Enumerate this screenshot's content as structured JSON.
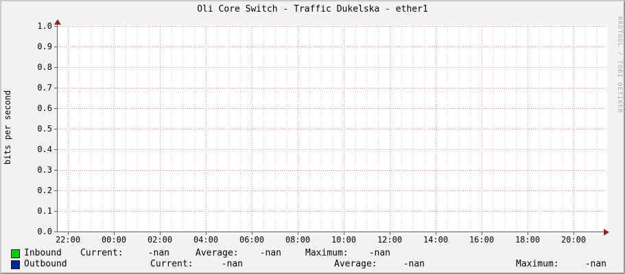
{
  "title": "Oli Core Switch - Traffic Dukelska - ether1",
  "watermark": "RRDTOOL / TOBI OETIKER",
  "chart_data": {
    "type": "line",
    "title": "Oli Core Switch - Traffic Dukelska - ether1",
    "xlabel": "",
    "ylabel": "bits per second",
    "ylim": [
      0.0,
      1.0
    ],
    "y_ticks": [
      "1.0",
      "0.9",
      "0.8",
      "0.7",
      "0.6",
      "0.5",
      "0.4",
      "0.3",
      "0.2",
      "0.1",
      "0.0"
    ],
    "x_ticks": [
      "22:00",
      "00:00",
      "02:00",
      "04:00",
      "06:00",
      "08:00",
      "10:00",
      "12:00",
      "14:00",
      "16:00",
      "18:00",
      "20:00"
    ],
    "grid": true,
    "legend_position": "bottom",
    "series": [
      {
        "name": "Inbound",
        "color": "#00CC00",
        "values": []
      },
      {
        "name": "Outbound",
        "color": "#00269C",
        "values": []
      }
    ]
  },
  "legend": {
    "inbound": {
      "swatch_color": "#00CC00",
      "label": "Inbound",
      "current_label": "Current:",
      "current_value": "-nan",
      "average_label": "Average:",
      "average_value": "-nan",
      "maximum_label": "Maximum:",
      "maximum_value": "-nan"
    },
    "outbound": {
      "swatch_color": "#00269C",
      "label": "Outbound",
      "current_label": "Current:",
      "current_value": "-nan",
      "average_label": "Average:",
      "average_value": "-nan",
      "maximum_label": "Maximum:",
      "maximum_value": "-nan"
    }
  },
  "colors": {
    "background": "#F2F2F2",
    "canvas": "#FFFFFF",
    "major_grid": "#E08E8E",
    "minor_grid": "#C8C8C8",
    "axis": "#5F5F5F",
    "arrow": "#8F2727",
    "watermark_text": "#A8A8A8"
  }
}
